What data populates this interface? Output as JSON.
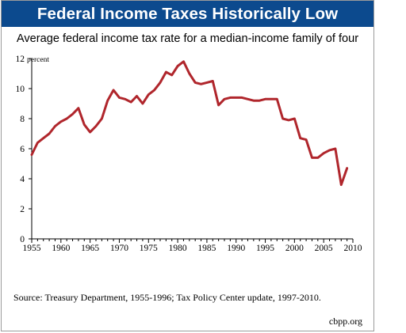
{
  "header": {
    "title": "Federal Income Taxes Historically Low",
    "subtitle": "Average federal income tax rate for a median-income family of four"
  },
  "footer": {
    "source": "Source: Treasury Department, 1955-1996; Tax Policy Center update, 1997-2010.",
    "credit": "cbpp.org"
  },
  "colors": {
    "title_bar": "#0c4a8e",
    "line": "#b0262c"
  },
  "chart_data": {
    "type": "line",
    "title": "Average federal income tax rate for a median-income family of four",
    "xlabel": "",
    "ylabel": "",
    "y_unit_label": "percent",
    "xlim": [
      1955,
      2010
    ],
    "ylim": [
      0,
      12
    ],
    "x_ticks": [
      1955,
      1960,
      1965,
      1970,
      1975,
      1980,
      1985,
      1990,
      1995,
      2000,
      2005,
      2010
    ],
    "y_ticks": [
      0,
      2,
      4,
      6,
      8,
      10,
      12
    ],
    "grid": false,
    "legend": "none",
    "series": [
      {
        "x": [
          1955,
          1956,
          1957,
          1958,
          1959,
          1960,
          1961,
          1962,
          1963,
          1964,
          1965,
          1966,
          1967,
          1968,
          1969,
          1970,
          1971,
          1972,
          1973,
          1974,
          1975,
          1976,
          1977,
          1978,
          1979,
          1980,
          1981,
          1982,
          1983,
          1984,
          1985,
          1986,
          1987,
          1988,
          1989,
          1990,
          1991,
          1992,
          1993,
          1994,
          1995,
          1996,
          1997,
          1998,
          1999,
          2000,
          2001,
          2002,
          2003,
          2004,
          2005,
          2006,
          2007,
          2008,
          2009
        ],
        "y": [
          5.6,
          6.4,
          6.7,
          7.0,
          7.5,
          7.8,
          8.0,
          8.3,
          8.7,
          7.6,
          7.1,
          7.5,
          8.0,
          9.2,
          9.9,
          9.4,
          9.3,
          9.1,
          9.5,
          9.0,
          9.6,
          9.9,
          10.4,
          11.1,
          10.9,
          11.5,
          11.8,
          11.0,
          10.4,
          10.3,
          10.4,
          10.5,
          8.9,
          9.3,
          9.4,
          9.4,
          9.4,
          9.3,
          9.2,
          9.2,
          9.3,
          9.3,
          9.3,
          8.0,
          7.9,
          8.0,
          6.7,
          6.6,
          5.4,
          5.4,
          5.7,
          5.9,
          6.0,
          3.6,
          4.7
        ]
      }
    ]
  }
}
